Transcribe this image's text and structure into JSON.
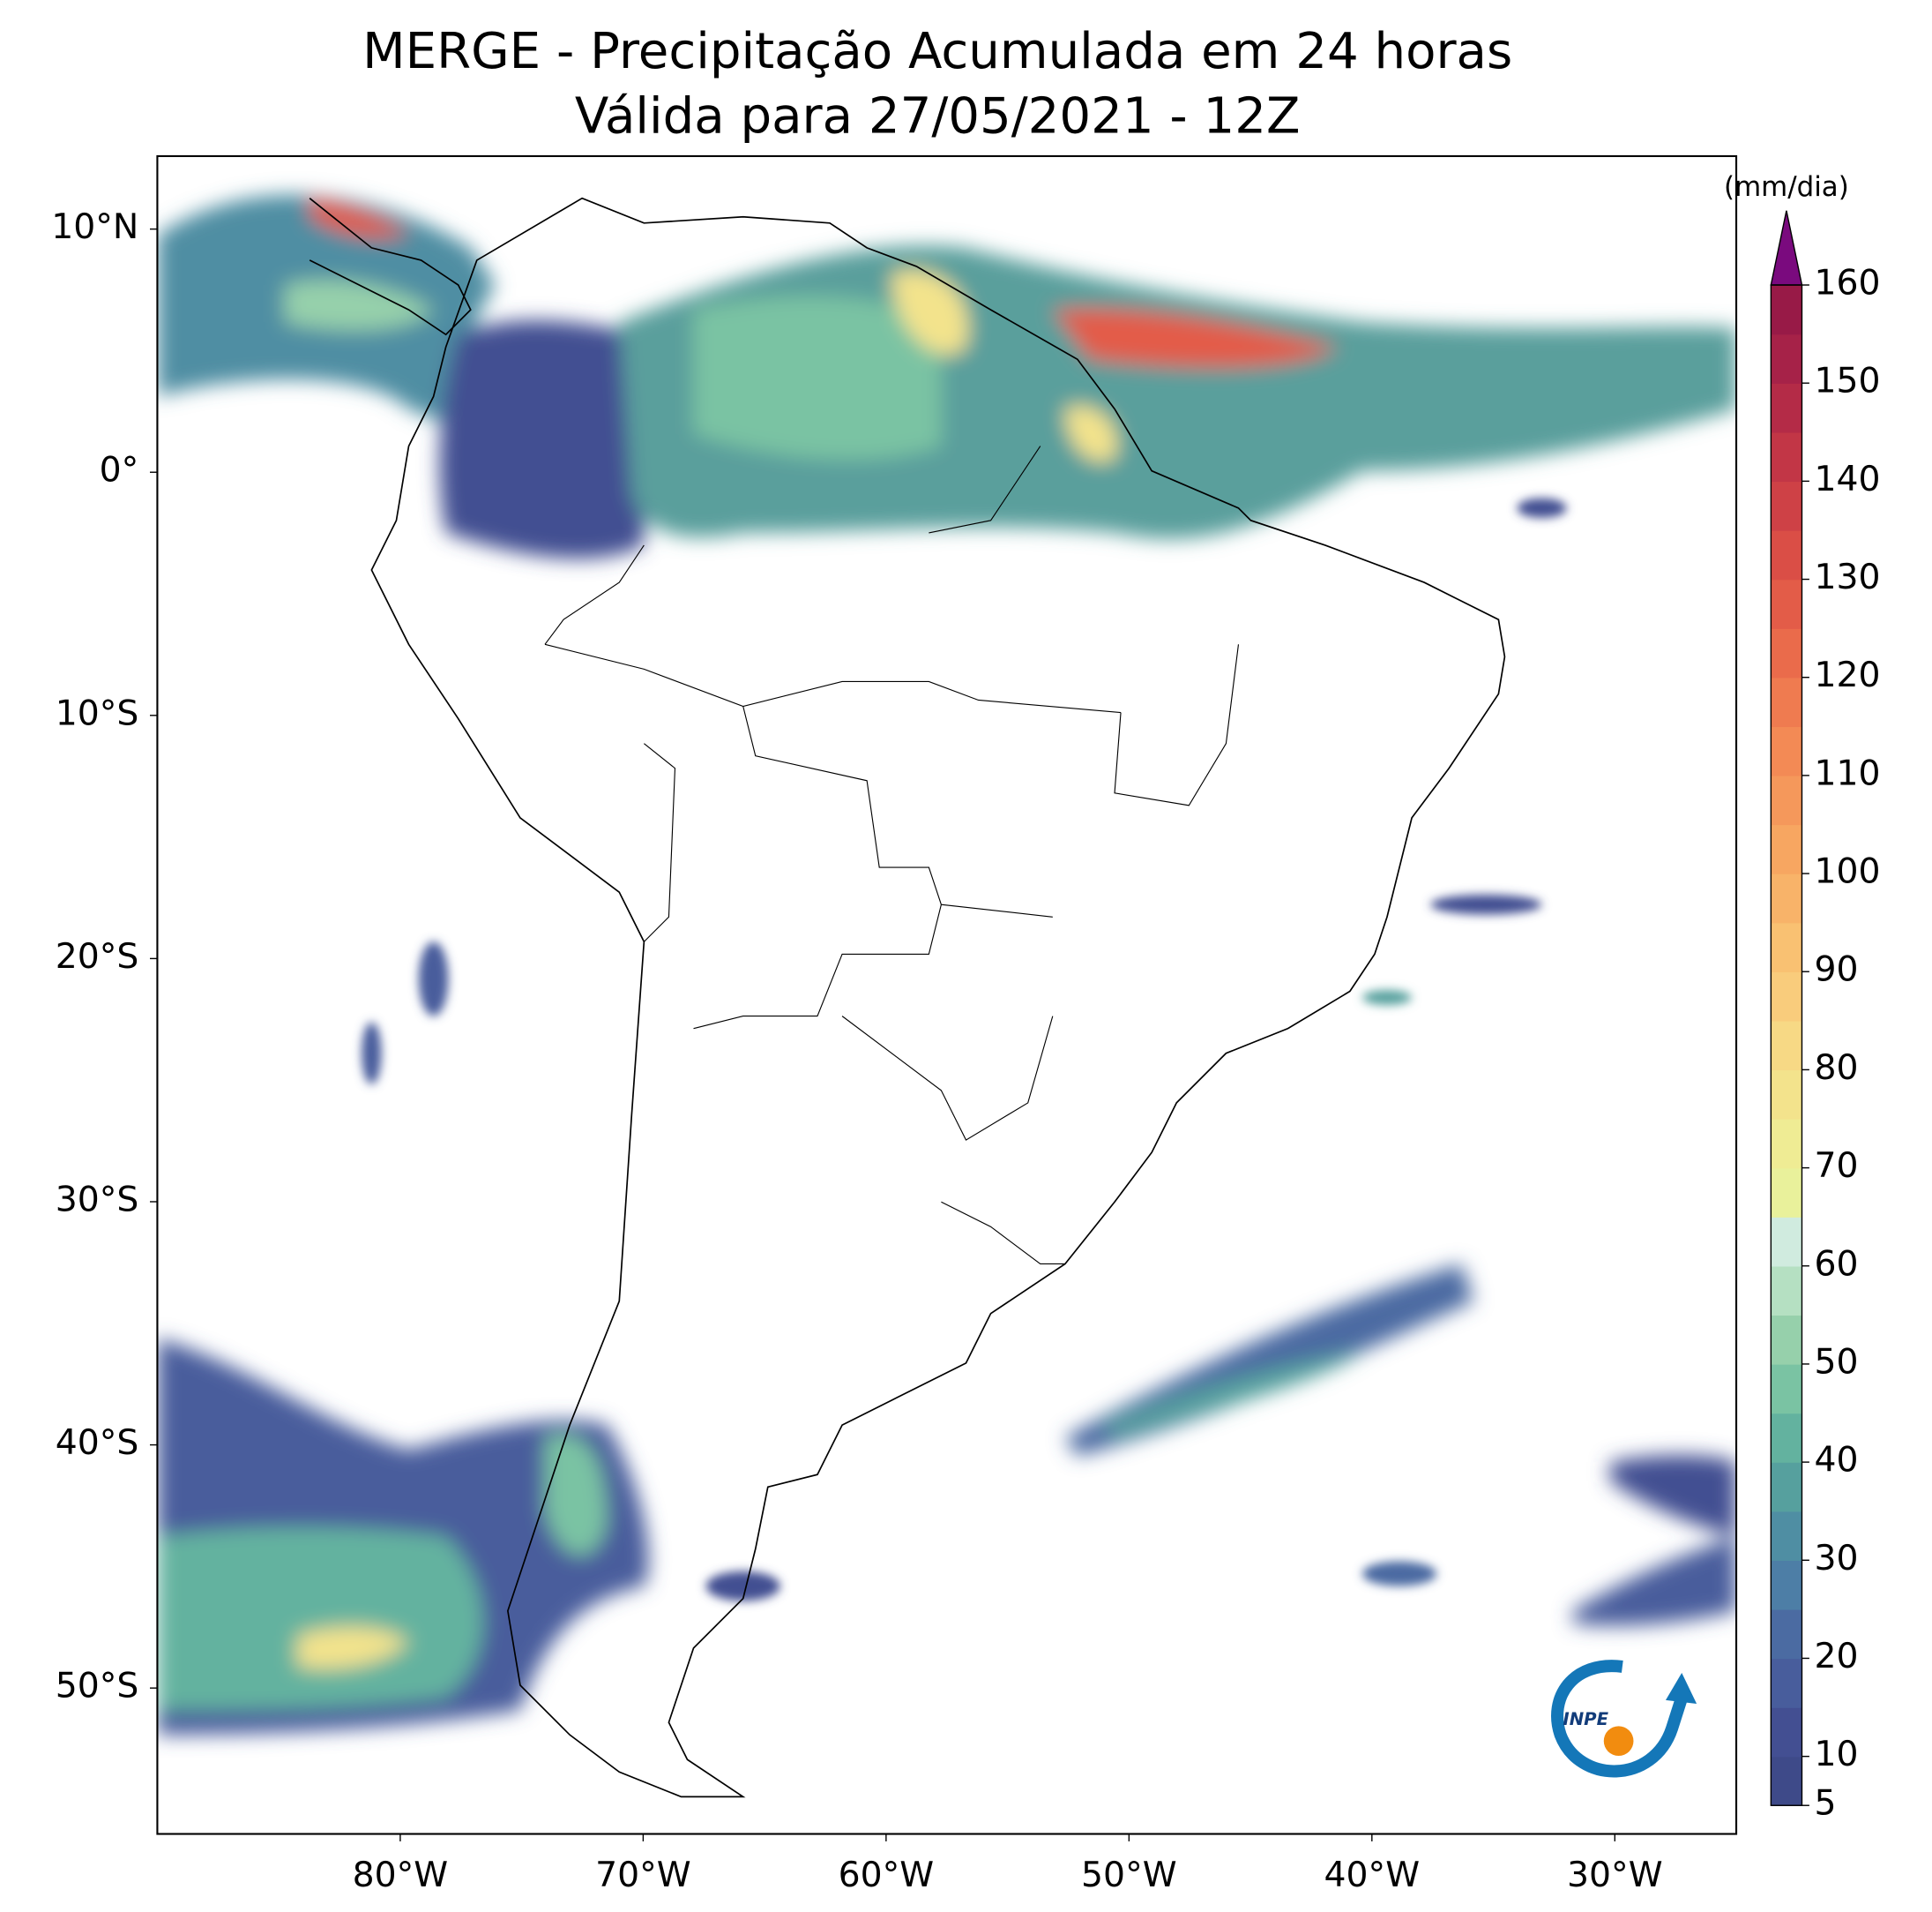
{
  "map": {
    "title": "MERGE - Precipitação Acumulada em 24 horas",
    "subtitle": "Válida para 27/05/2021 - 12Z",
    "xlim": [
      -90,
      -25
    ],
    "ylim": [
      -56,
      13
    ],
    "xticks": [
      {
        "value": -80,
        "label": "80°W"
      },
      {
        "value": -70,
        "label": "70°W"
      },
      {
        "value": -60,
        "label": "60°W"
      },
      {
        "value": -50,
        "label": "50°W"
      },
      {
        "value": -40,
        "label": "40°W"
      },
      {
        "value": -30,
        "label": "30°W"
      }
    ],
    "yticks": [
      {
        "value": 10,
        "label": "10°N"
      },
      {
        "value": 0,
        "label": "0°"
      },
      {
        "value": -10,
        "label": "10°S"
      },
      {
        "value": -20,
        "label": "20°S"
      },
      {
        "value": -30,
        "label": "30°S"
      },
      {
        "value": -40,
        "label": "40°S"
      },
      {
        "value": -50,
        "label": "50°S"
      }
    ]
  },
  "colorbar": {
    "label": "(mm/dia)",
    "lim": [
      5,
      160
    ],
    "ticks": [
      5,
      10,
      20,
      30,
      40,
      50,
      60,
      70,
      80,
      90,
      100,
      110,
      120,
      130,
      140,
      150,
      160
    ],
    "colors": [
      "#3e4a89",
      "#434f92",
      "#485d9c",
      "#4b6ba2",
      "#4d7ea6",
      "#4f8ea3",
      "#56a09e",
      "#63b29f",
      "#7ac3a3",
      "#96d0ab",
      "#b5e0c2",
      "#d0ebdf",
      "#e9f19b",
      "#efec94",
      "#f3e38c",
      "#f7d985",
      "#f9cc7c",
      "#f9c172",
      "#f8b369",
      "#f7a661",
      "#f5985b",
      "#f38a55",
      "#ef7b50",
      "#ea6b4b",
      "#e35c48",
      "#da4e46",
      "#ce4146",
      "#c23646",
      "#b42b47",
      "#a62248",
      "#981a47"
    ],
    "extend_color": "#7a0a7e"
  },
  "logo": "INPE"
}
